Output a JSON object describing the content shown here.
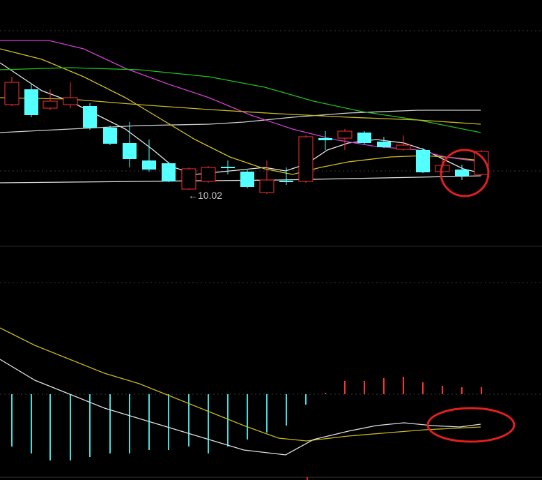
{
  "annotations": {
    "low_label": "←10.02"
  }
}
